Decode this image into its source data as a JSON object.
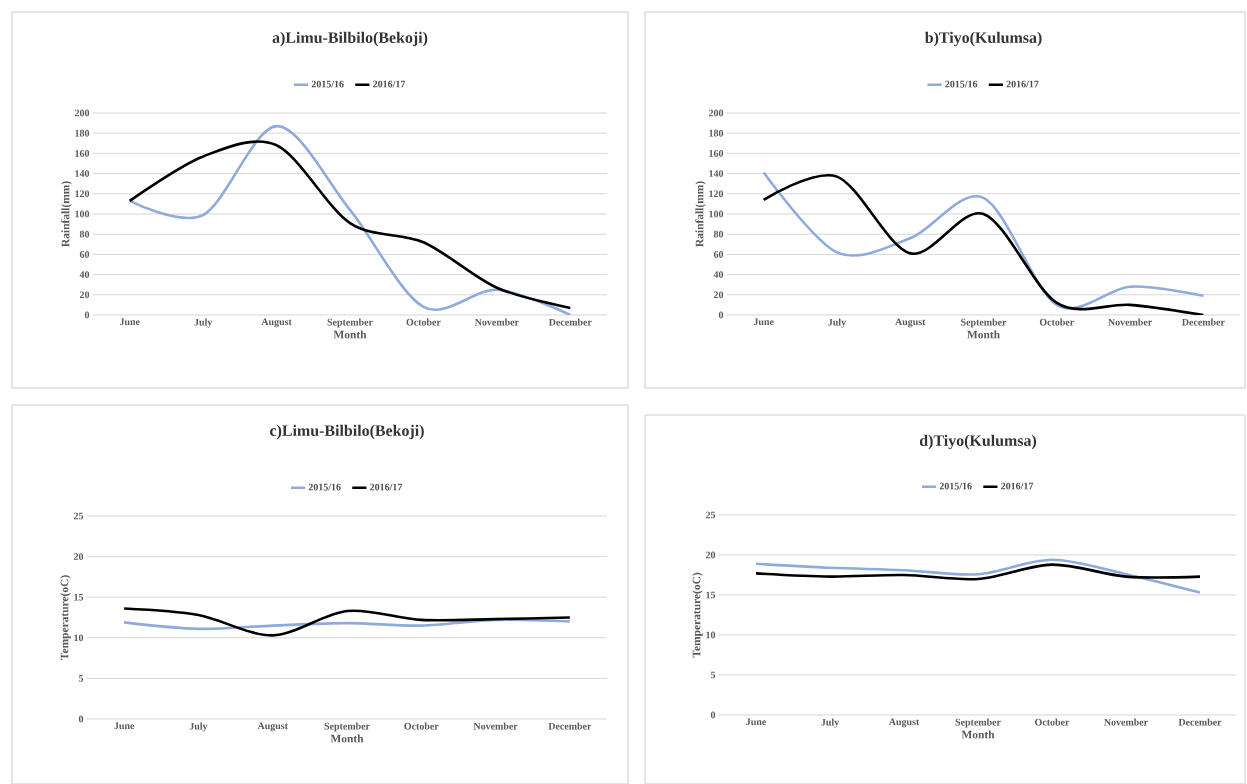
{
  "chart_data": [
    {
      "type": "line",
      "title": "a)Limu-Bilbilo(Bekoji)",
      "xlabel": "Month",
      "ylabel": "Rainfall(mm)",
      "categories": [
        "June",
        "July",
        "August",
        "September",
        "October",
        "November",
        "December"
      ],
      "ylim": [
        0,
        200
      ],
      "yticks": [
        0,
        20,
        40,
        60,
        80,
        100,
        120,
        140,
        160,
        180,
        200
      ],
      "grid": "y",
      "legend": "top",
      "marker": "none",
      "series": [
        {
          "name": "2015/16",
          "color": "#8faadc",
          "values": [
            113,
            99,
            187,
            104,
            8,
            25,
            0
          ]
        },
        {
          "name": "2016/17",
          "color": "#000000",
          "values": [
            113,
            157,
            168,
            91,
            72,
            27,
            7
          ]
        }
      ]
    },
    {
      "type": "line",
      "title": "b)Tiyo(Kulumsa)",
      "xlabel": "Month",
      "ylabel": "Rainfall(mm)",
      "categories": [
        "June",
        "July",
        "August",
        "September",
        "October",
        "November",
        "December"
      ],
      "ylim": [
        0,
        200
      ],
      "yticks": [
        0,
        20,
        40,
        60,
        80,
        100,
        120,
        140,
        160,
        180,
        200
      ],
      "grid": "y",
      "legend": "top",
      "marker": "none",
      "series": [
        {
          "name": "2015/16",
          "color": "#8faadc",
          "values": [
            141,
            62,
            76,
            116,
            10,
            28,
            19
          ]
        },
        {
          "name": "2016/17",
          "color": "#000000",
          "values": [
            114,
            137,
            61,
            100,
            12,
            10,
            0
          ]
        }
      ]
    },
    {
      "type": "line",
      "title": "c)Limu-Bilbilo(Bekoji)",
      "xlabel": "Month",
      "ylabel": "Temperature(oC)",
      "categories": [
        "June",
        "July",
        "August",
        "September",
        "October",
        "November",
        "December"
      ],
      "ylim": [
        0,
        25
      ],
      "yticks": [
        0,
        5,
        10,
        15,
        20,
        25
      ],
      "grid": "y",
      "legend": "top",
      "marker": "none",
      "series": [
        {
          "name": "2015/16",
          "color": "#8faadc",
          "values": [
            11.9,
            11.1,
            11.5,
            11.8,
            11.5,
            12.2,
            12.0
          ]
        },
        {
          "name": "2016/17",
          "color": "#000000",
          "values": [
            13.6,
            12.8,
            10.3,
            13.3,
            12.2,
            12.3,
            12.5
          ]
        }
      ]
    },
    {
      "type": "line",
      "title": "d)Tiyo(Kulumsa)",
      "xlabel": "Month",
      "ylabel": "Temperature(oC)",
      "categories": [
        "June",
        "July",
        "August",
        "September",
        "October",
        "November",
        "December"
      ],
      "ylim": [
        0,
        25
      ],
      "yticks": [
        0,
        5,
        10,
        15,
        20,
        25
      ],
      "grid": "y",
      "legend": "top",
      "marker": "none",
      "series": [
        {
          "name": "2015/16",
          "color": "#8faadc",
          "values": [
            18.9,
            18.4,
            18.1,
            17.6,
            19.4,
            17.6,
            15.3
          ]
        },
        {
          "name": "2016/17",
          "color": "#000000",
          "values": [
            17.7,
            17.3,
            17.5,
            17.0,
            18.8,
            17.3,
            17.3
          ]
        }
      ]
    }
  ]
}
